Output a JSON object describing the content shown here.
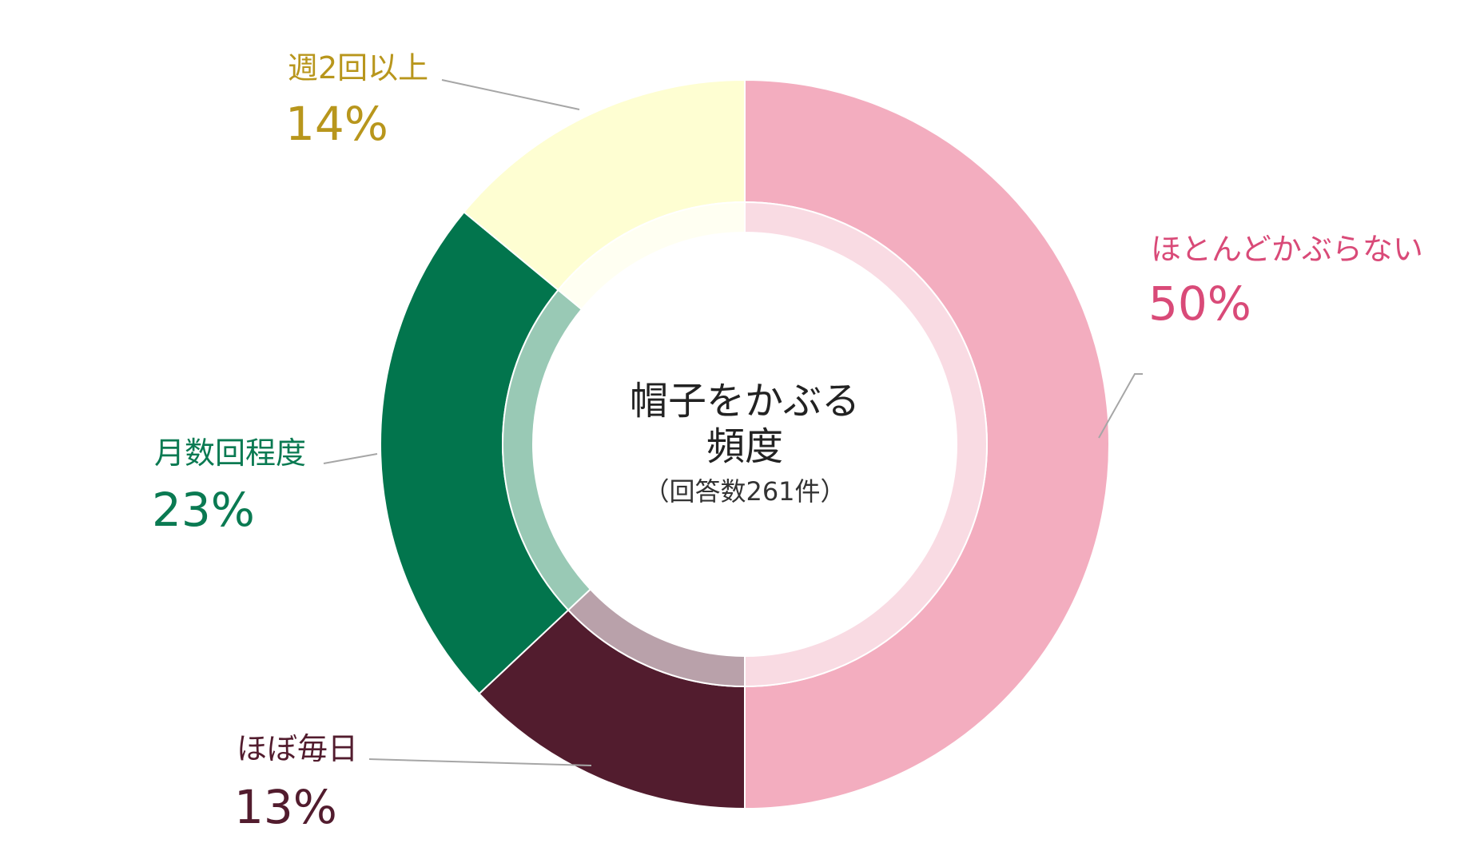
{
  "chart_data": {
    "type": "pie",
    "title": "帽子をかぶる 頻度",
    "title_lines": [
      "帽子をかぶる",
      "頻度"
    ],
    "subtitle": "（回答数261件）",
    "legend": "none",
    "slices": [
      {
        "label": "ほとんどかぶらない",
        "value": 50,
        "value_label": "50%",
        "color": "#f3adbf",
        "inner_color": "#f9dbe3",
        "text_color": "#d94a78"
      },
      {
        "label": "ほぼ毎日",
        "value": 13,
        "value_label": "13%",
        "color": "#521c2e",
        "inner_color": "#b9a1aa",
        "text_color": "#521c2e"
      },
      {
        "label": "月数回程度",
        "value": 23,
        "value_label": "23%",
        "color": "#02754d",
        "inner_color": "#99c9b5",
        "text_color": "#0a7a52"
      },
      {
        "label": "週2回以上",
        "value": 14,
        "value_label": "14%",
        "color": "#fefed2",
        "inner_color": "#fffff2",
        "text_color": "#b8961c"
      }
    ]
  }
}
